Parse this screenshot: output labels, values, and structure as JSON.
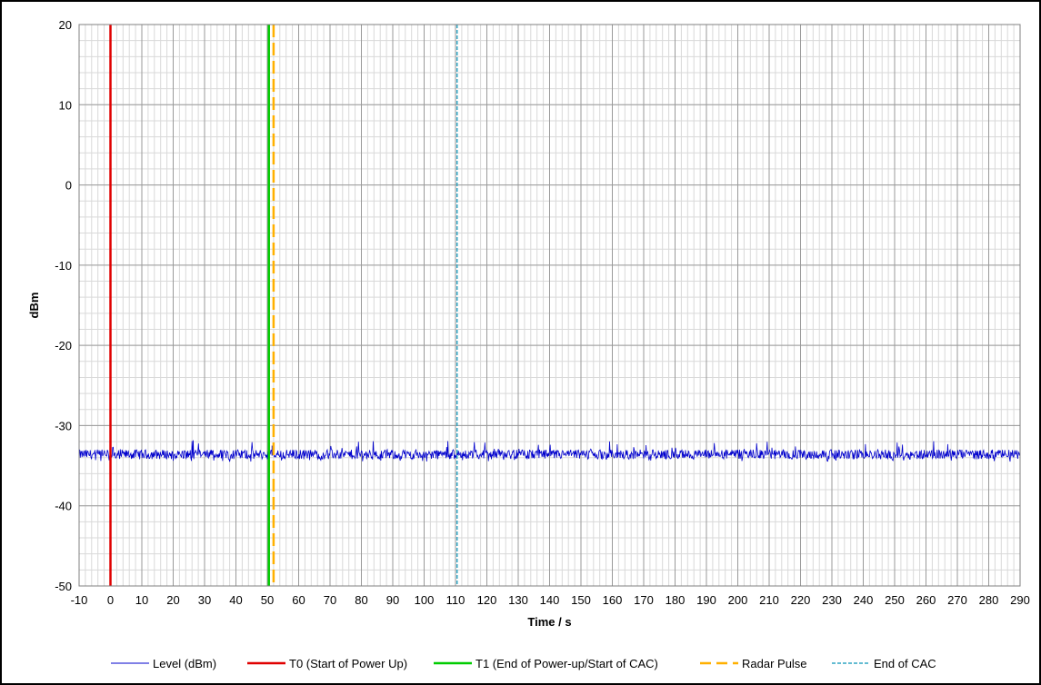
{
  "chart_data": {
    "type": "line",
    "title": "",
    "xlabel": "Time / s",
    "ylabel": "dBm",
    "xlim": [
      -10,
      290
    ],
    "ylim": [
      -50,
      20
    ],
    "x_ticks": [
      -10,
      0,
      10,
      20,
      30,
      40,
      50,
      60,
      70,
      80,
      90,
      100,
      110,
      120,
      130,
      140,
      150,
      160,
      170,
      180,
      190,
      200,
      210,
      220,
      230,
      240,
      250,
      260,
      270,
      280,
      290
    ],
    "y_ticks": [
      -50,
      -40,
      -30,
      -20,
      -10,
      0,
      10,
      20
    ],
    "x_minor_step": 2,
    "y_minor_step": 2,
    "grid": true,
    "legend_position": "bottom",
    "series": [
      {
        "name": "Level (dBm)",
        "kind": "noise-trace",
        "color": "#0000cc",
        "x_range": [
          -10,
          290
        ],
        "mean": -33.6,
        "min": -34.5,
        "max": -31.2,
        "bumps": [
          {
            "x": 51.5,
            "y": -32.5
          }
        ]
      },
      {
        "name": "T0 (Start of Power Up)",
        "kind": "vline",
        "x": 0,
        "color": "#e00000",
        "style": "solid"
      },
      {
        "name": "T1 (End of Power-up/Start of CAC)",
        "kind": "vline",
        "x": 50.5,
        "color": "#00cc00",
        "style": "solid"
      },
      {
        "name": "Radar Pulse",
        "kind": "vline",
        "x": 52,
        "color": "#ffb000",
        "style": "dashed"
      },
      {
        "name": "End of CAC",
        "kind": "vline",
        "x": 110.5,
        "color": "#31a6c4",
        "style": "dotted"
      }
    ]
  }
}
